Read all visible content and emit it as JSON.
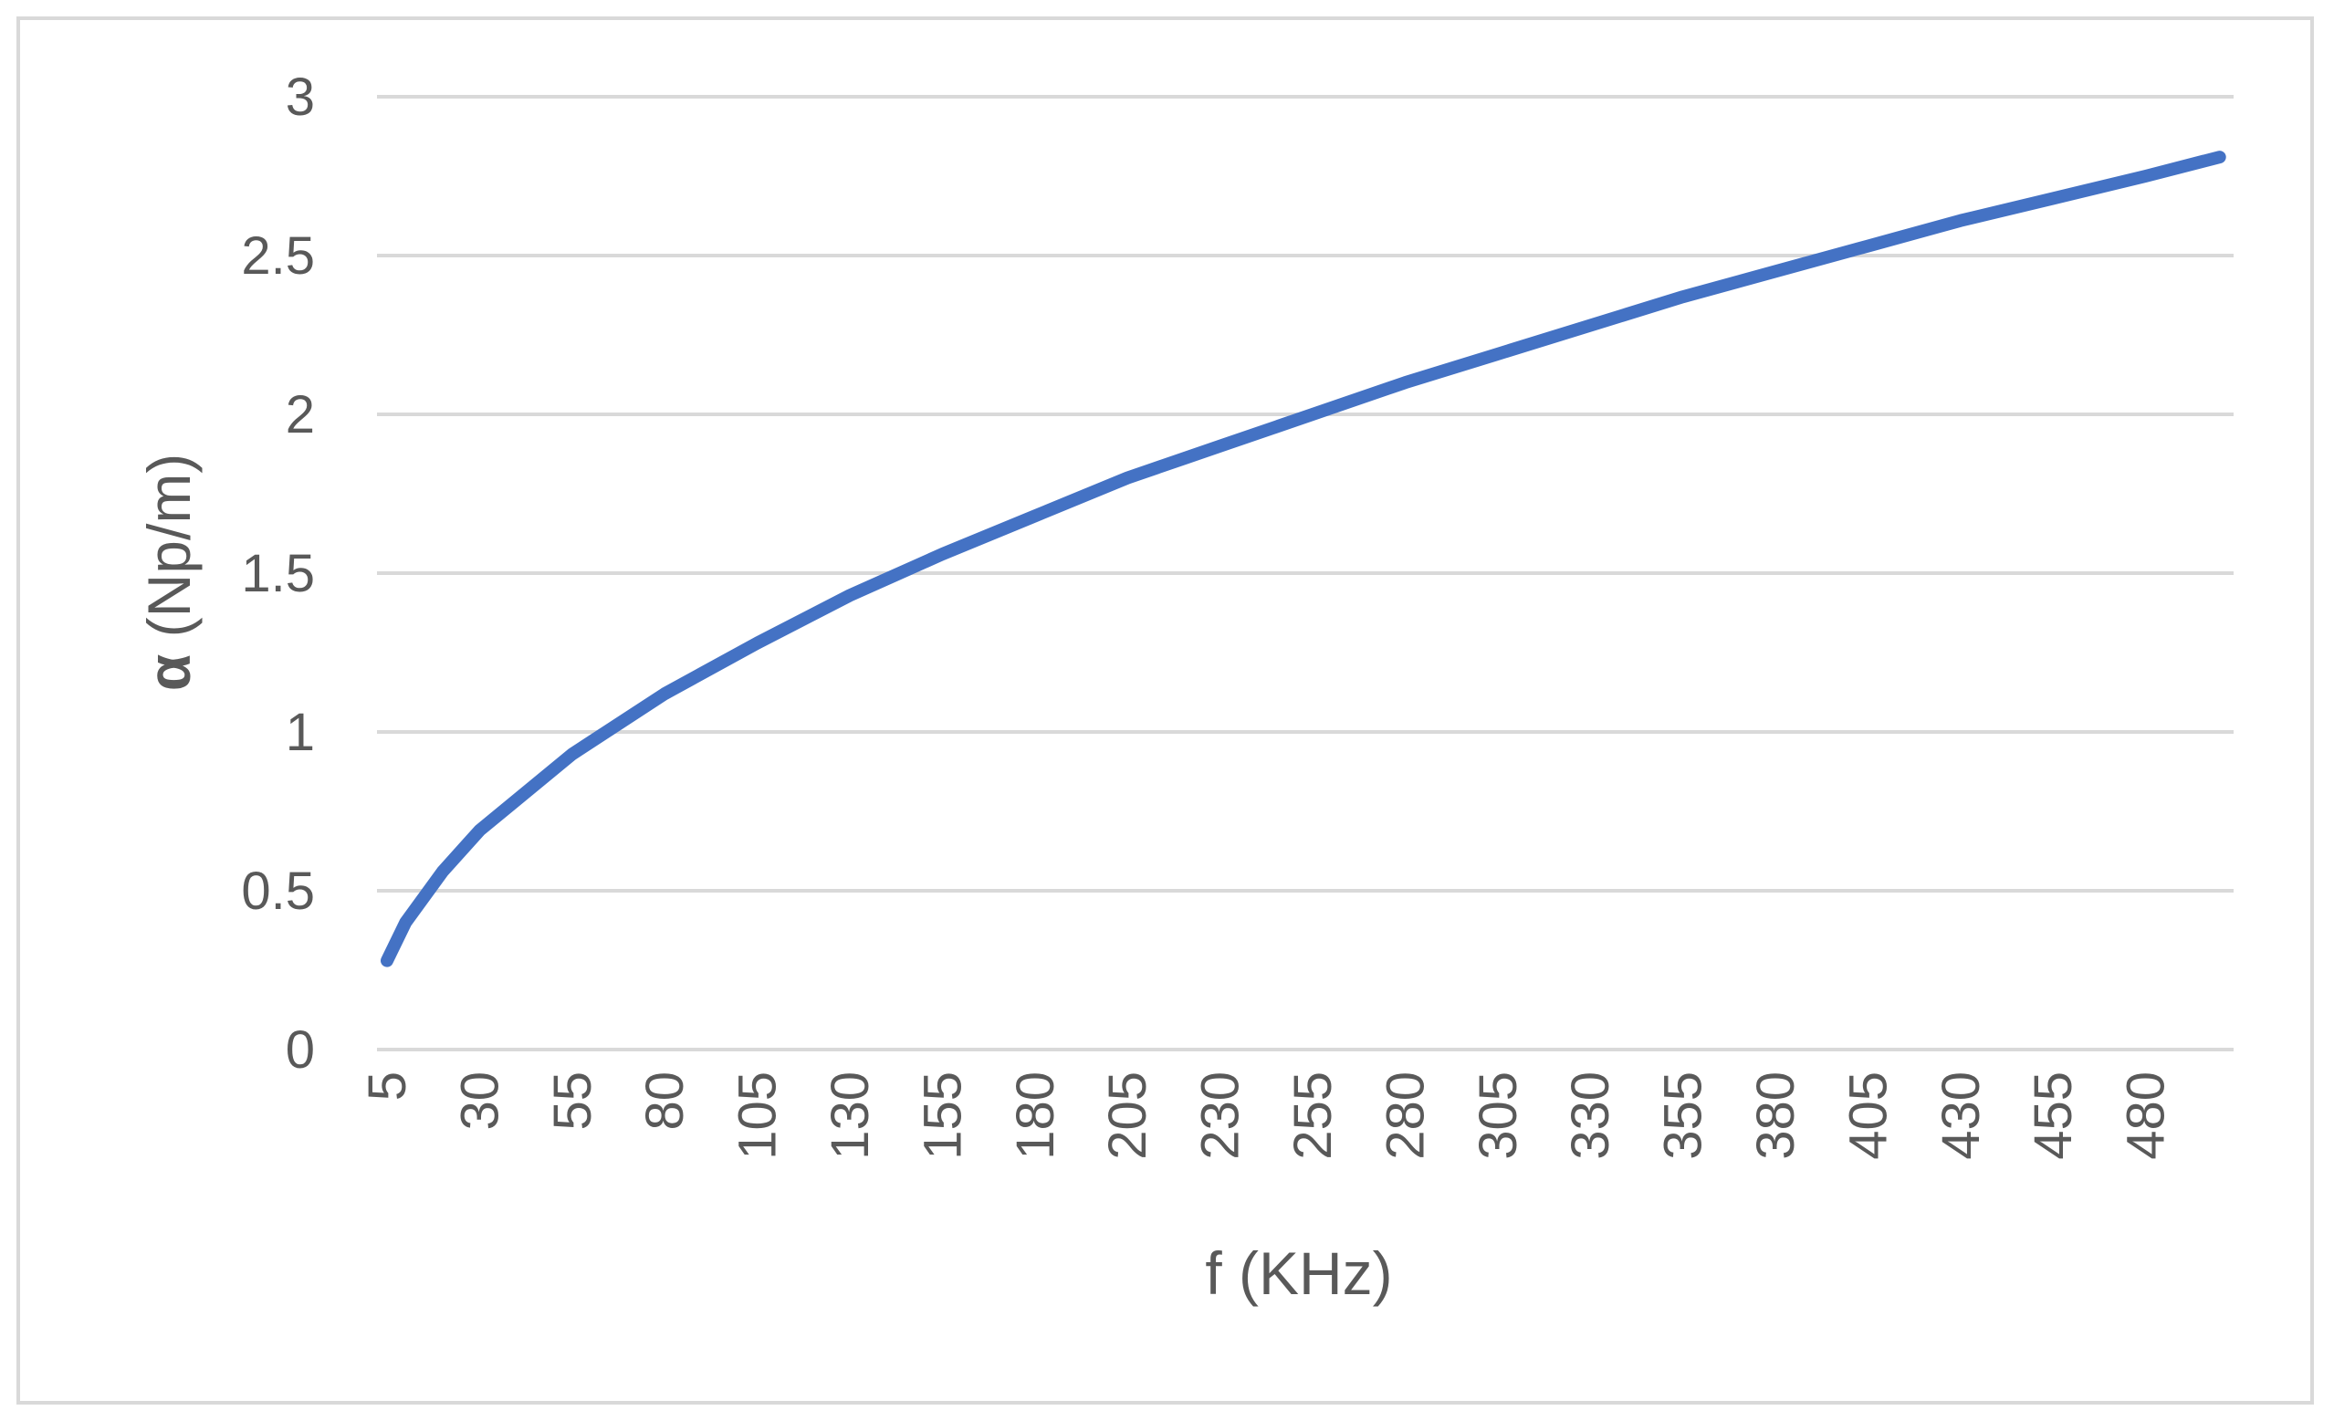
{
  "chart_data": {
    "type": "line",
    "title": "",
    "xlabel": "f (KHz)",
    "ylabel_symbol": "α",
    "ylabel_unit": " (Np/m)",
    "ylim": [
      0,
      3
    ],
    "yticks": [
      "0",
      "0.5",
      "1",
      "1.5",
      "2",
      "2.5",
      "3"
    ],
    "xlim": [
      5,
      500
    ],
    "xticks": [
      "5",
      "30",
      "55",
      "80",
      "105",
      "130",
      "155",
      "180",
      "205",
      "230",
      "255",
      "280",
      "305",
      "330",
      "355",
      "380",
      "405",
      "430",
      "455",
      "480"
    ],
    "grid": true,
    "legend": "none",
    "series": [
      {
        "color": "#4472c4",
        "x": [
          5,
          10,
          20,
          30,
          55,
          80,
          105,
          130,
          155,
          180,
          205,
          230,
          255,
          280,
          305,
          330,
          355,
          380,
          405,
          430,
          455,
          480,
          500
        ],
        "y": [
          0.28,
          0.4,
          0.56,
          0.69,
          0.93,
          1.12,
          1.28,
          1.43,
          1.56,
          1.68,
          1.8,
          1.9,
          2.0,
          2.1,
          2.19,
          2.28,
          2.37,
          2.45,
          2.53,
          2.61,
          2.68,
          2.75,
          2.81
        ]
      }
    ]
  }
}
